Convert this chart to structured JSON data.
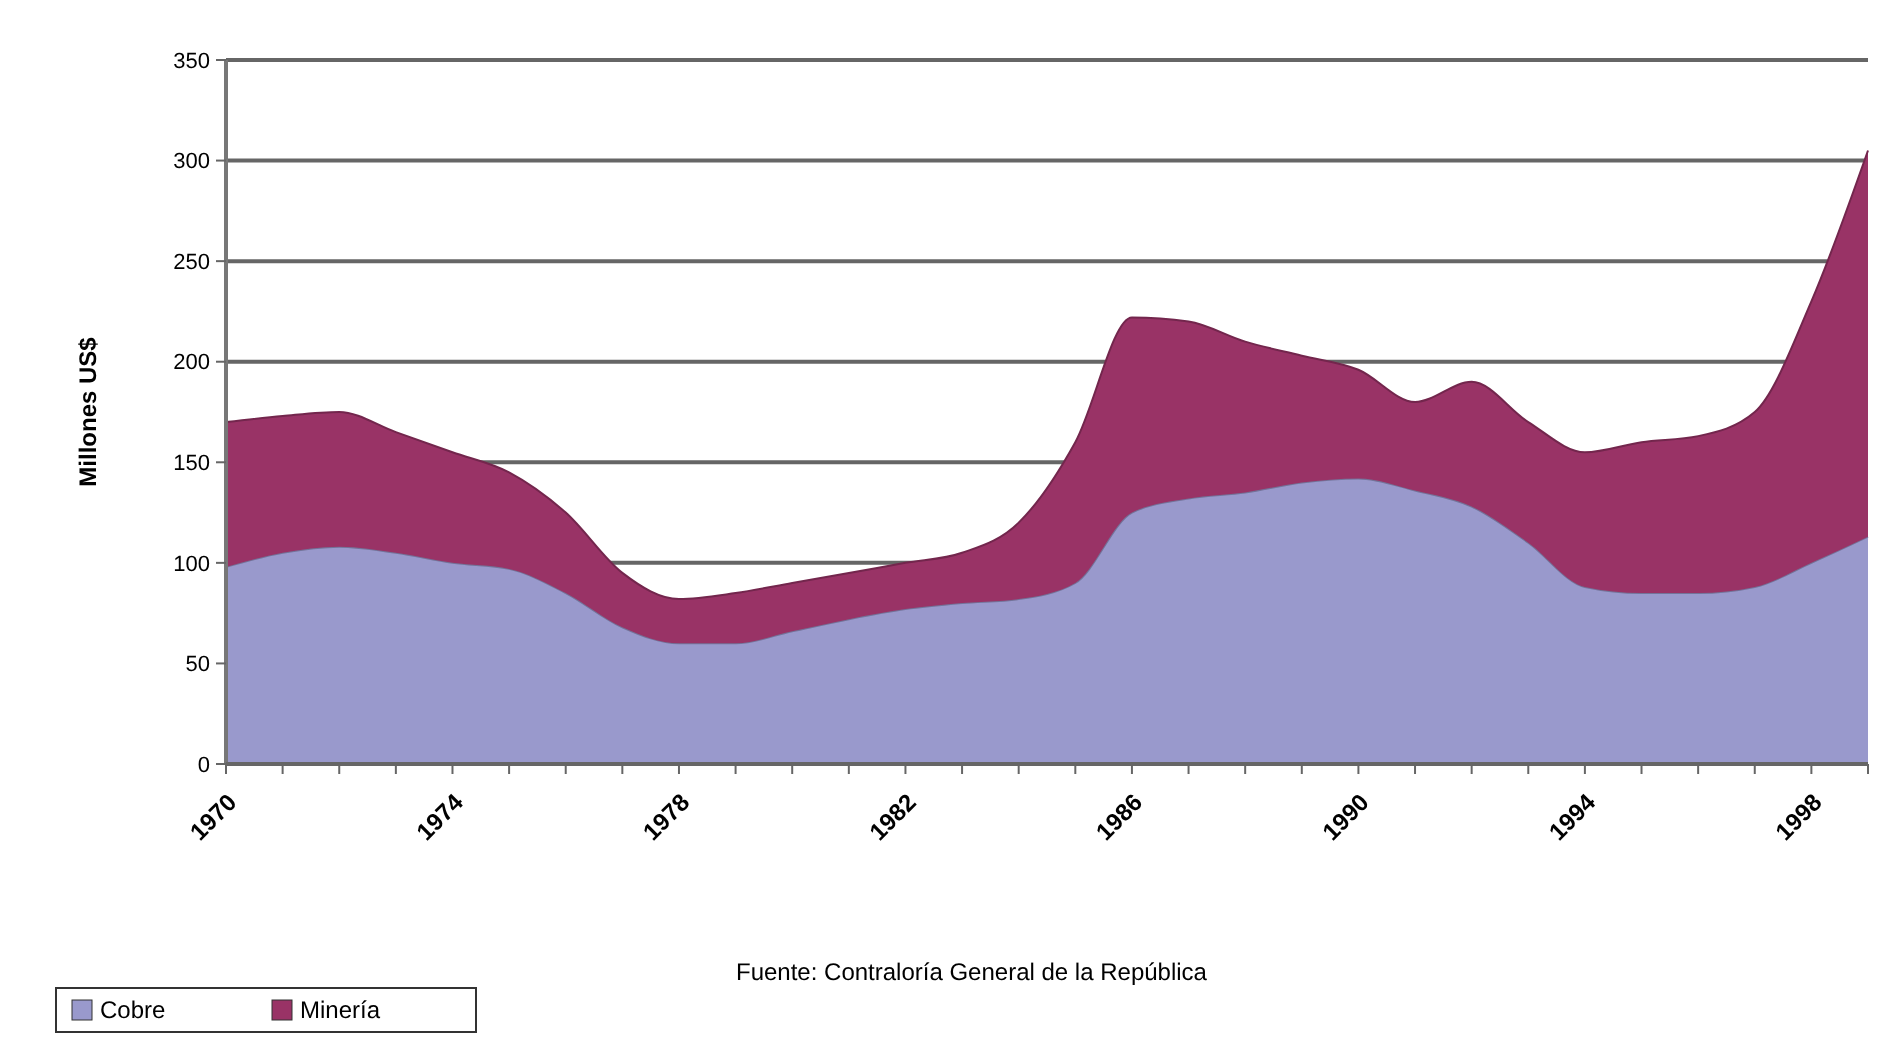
{
  "chart_data": {
    "type": "area",
    "stacked": true,
    "ylabel": "Millones US$",
    "x": [
      1970,
      1971,
      1972,
      1973,
      1974,
      1975,
      1976,
      1977,
      1978,
      1979,
      1980,
      1981,
      1982,
      1983,
      1984,
      1985,
      1986,
      1987,
      1988,
      1989,
      1990,
      1991,
      1992,
      1993,
      1994,
      1995,
      1996,
      1997,
      1998,
      1999
    ],
    "series": [
      {
        "name": "Cobre",
        "color": "#9999cc",
        "values": [
          98,
          105,
          108,
          105,
          100,
          97,
          85,
          68,
          60,
          60,
          66,
          72,
          77,
          80,
          82,
          90,
          125,
          132,
          135,
          140,
          142,
          136,
          128,
          110,
          88,
          85,
          85,
          88,
          100,
          113
        ]
      },
      {
        "name": "Minería",
        "color": "#993366",
        "values": [
          72,
          68,
          67,
          60,
          55,
          48,
          40,
          27,
          22,
          25,
          24,
          23,
          23,
          25,
          38,
          70,
          97,
          88,
          75,
          63,
          54,
          44,
          62,
          60,
          67,
          75,
          78,
          87,
          130,
          192
        ]
      }
    ],
    "xlim": [
      1970,
      1999
    ],
    "xticks": [
      1970,
      {
        "value": 1971,
        "label": null
      },
      {
        "value": 1972,
        "label": null
      },
      {
        "value": 1973,
        "label": null
      },
      1974,
      {
        "value": 1975,
        "label": null
      },
      {
        "value": 1976,
        "label": null
      },
      {
        "value": 1977,
        "label": null
      },
      1978,
      {
        "value": 1979,
        "label": null
      },
      {
        "value": 1980,
        "label": null
      },
      {
        "value": 1981,
        "label": null
      },
      1982,
      {
        "value": 1983,
        "label": null
      },
      {
        "value": 1984,
        "label": null
      },
      {
        "value": 1985,
        "label": null
      },
      1986,
      {
        "value": 1987,
        "label": null
      },
      {
        "value": 1988,
        "label": null
      },
      {
        "value": 1989,
        "label": null
      },
      1990,
      {
        "value": 1991,
        "label": null
      },
      {
        "value": 1992,
        "label": null
      },
      {
        "value": 1993,
        "label": null
      },
      1994,
      {
        "value": 1995,
        "label": null
      },
      {
        "value": 1996,
        "label": null
      },
      {
        "value": 1997,
        "label": null
      },
      1998,
      {
        "value": 1999,
        "label": null
      }
    ],
    "ylim": [
      0,
      350
    ],
    "yticks": [
      0,
      50,
      100,
      150,
      200,
      250,
      300,
      350
    ],
    "grid": "y",
    "legend": "bottom left",
    "annotations": [
      "Fuente: Contraloría General de la República"
    ]
  }
}
